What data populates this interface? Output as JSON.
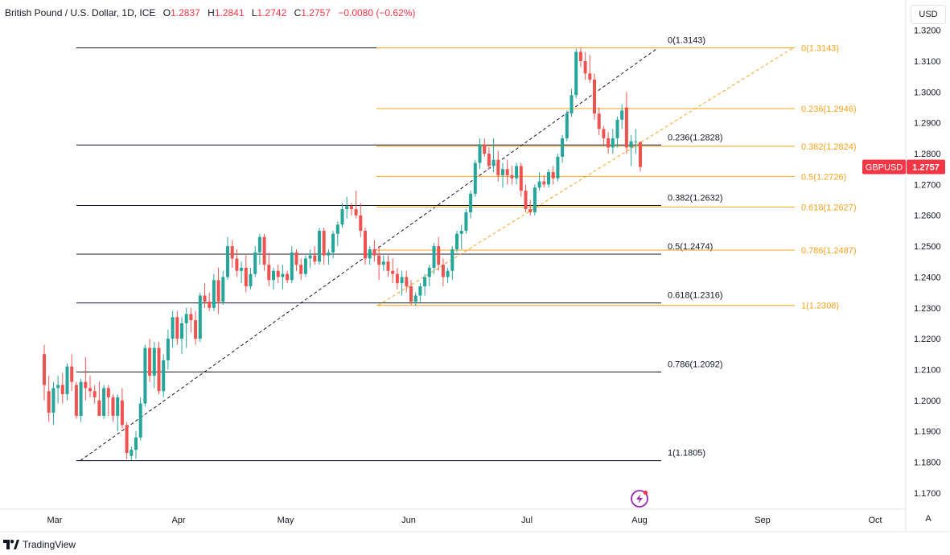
{
  "legend": {
    "title": "British Pound / U.S. Dollar, 1D, ICE",
    "open_label": "O",
    "open": "1.2837",
    "high_label": "H",
    "high": "1.2841",
    "low_label": "L",
    "low": "1.2742",
    "close_label": "C",
    "close": "1.2757",
    "change": "−0.0080 (−0.62%)"
  },
  "currency_button": "USD",
  "auto_scale_button": "A",
  "footer": {
    "brand": "TradingView",
    "logo_icon": "tradingview-logo-icon"
  },
  "colors": {
    "up": "#26a69a",
    "down": "#ef5350",
    "fib_black": "#131722",
    "fib_orange": "#f7a21b",
    "price_tag": "#f23645"
  },
  "price_tag": {
    "symbol": "GBPUSD",
    "price": "1.2757"
  },
  "chart_data": {
    "type": "candlestick",
    "symbol": "GBPUSD",
    "interval": "1D",
    "ylim": [
      1.165,
      1.322
    ],
    "y_ticks": [
      "1.3200",
      "1.3100",
      "1.3000",
      "1.2900",
      "1.2800",
      "1.2700",
      "1.2600",
      "1.2500",
      "1.2400",
      "1.2300",
      "1.2200",
      "1.2100",
      "1.2000",
      "1.1900",
      "1.1800",
      "1.1700"
    ],
    "x_ticks": [
      "Mar",
      "Apr",
      "May",
      "Jun",
      "Jul",
      "Aug",
      "Sep",
      "Oct"
    ],
    "candles": [
      {
        "o": 1.215,
        "h": 1.218,
        "l": 1.2,
        "c": 1.205
      },
      {
        "o": 1.203,
        "h": 1.208,
        "l": 1.193,
        "c": 1.196
      },
      {
        "o": 1.196,
        "h": 1.206,
        "l": 1.192,
        "c": 1.204
      },
      {
        "o": 1.204,
        "h": 1.208,
        "l": 1.199,
        "c": 1.205
      },
      {
        "o": 1.205,
        "h": 1.209,
        "l": 1.199,
        "c": 1.202
      },
      {
        "o": 1.202,
        "h": 1.212,
        "l": 1.2,
        "c": 1.211
      },
      {
        "o": 1.211,
        "h": 1.215,
        "l": 1.203,
        "c": 1.206
      },
      {
        "o": 1.205,
        "h": 1.206,
        "l": 1.194,
        "c": 1.195
      },
      {
        "o": 1.195,
        "h": 1.207,
        "l": 1.193,
        "c": 1.206
      },
      {
        "o": 1.206,
        "h": 1.214,
        "l": 1.2,
        "c": 1.204
      },
      {
        "o": 1.204,
        "h": 1.208,
        "l": 1.201,
        "c": 1.203
      },
      {
        "o": 1.203,
        "h": 1.205,
        "l": 1.199,
        "c": 1.201
      },
      {
        "o": 1.2,
        "h": 1.206,
        "l": 1.195,
        "c": 1.195
      },
      {
        "o": 1.195,
        "h": 1.205,
        "l": 1.194,
        "c": 1.204
      },
      {
        "o": 1.204,
        "h": 1.205,
        "l": 1.195,
        "c": 1.201
      },
      {
        "o": 1.201,
        "h": 1.202,
        "l": 1.193,
        "c": 1.195
      },
      {
        "o": 1.195,
        "h": 1.202,
        "l": 1.19,
        "c": 1.201
      },
      {
        "o": 1.2,
        "h": 1.204,
        "l": 1.191,
        "c": 1.192
      },
      {
        "o": 1.192,
        "h": 1.193,
        "l": 1.181,
        "c": 1.183
      },
      {
        "o": 1.182,
        "h": 1.185,
        "l": 1.1805,
        "c": 1.184
      },
      {
        "o": 1.184,
        "h": 1.19,
        "l": 1.181,
        "c": 1.188
      },
      {
        "o": 1.188,
        "h": 1.201,
        "l": 1.187,
        "c": 1.199
      },
      {
        "o": 1.199,
        "h": 1.218,
        "l": 1.198,
        "c": 1.217
      },
      {
        "o": 1.217,
        "h": 1.22,
        "l": 1.206,
        "c": 1.208
      },
      {
        "o": 1.208,
        "h": 1.219,
        "l": 1.204,
        "c": 1.217
      },
      {
        "o": 1.217,
        "h": 1.219,
        "l": 1.202,
        "c": 1.203
      },
      {
        "o": 1.203,
        "h": 1.215,
        "l": 1.201,
        "c": 1.213
      },
      {
        "o": 1.213,
        "h": 1.223,
        "l": 1.21,
        "c": 1.22
      },
      {
        "o": 1.22,
        "h": 1.229,
        "l": 1.217,
        "c": 1.227
      },
      {
        "o": 1.227,
        "h": 1.229,
        "l": 1.218,
        "c": 1.22
      },
      {
        "o": 1.22,
        "h": 1.227,
        "l": 1.215,
        "c": 1.225
      },
      {
        "o": 1.225,
        "h": 1.23,
        "l": 1.217,
        "c": 1.228
      },
      {
        "o": 1.228,
        "h": 1.23,
        "l": 1.222,
        "c": 1.226
      },
      {
        "o": 1.226,
        "h": 1.229,
        "l": 1.218,
        "c": 1.22
      },
      {
        "o": 1.22,
        "h": 1.235,
        "l": 1.219,
        "c": 1.234
      },
      {
        "o": 1.234,
        "h": 1.238,
        "l": 1.23,
        "c": 1.232
      },
      {
        "o": 1.232,
        "h": 1.235,
        "l": 1.229,
        "c": 1.23
      },
      {
        "o": 1.23,
        "h": 1.241,
        "l": 1.229,
        "c": 1.239
      },
      {
        "o": 1.239,
        "h": 1.243,
        "l": 1.228,
        "c": 1.232
      },
      {
        "o": 1.232,
        "h": 1.242,
        "l": 1.231,
        "c": 1.24
      },
      {
        "o": 1.24,
        "h": 1.253,
        "l": 1.239,
        "c": 1.25
      },
      {
        "o": 1.25,
        "h": 1.252,
        "l": 1.243,
        "c": 1.246
      },
      {
        "o": 1.246,
        "h": 1.249,
        "l": 1.24,
        "c": 1.242
      },
      {
        "o": 1.242,
        "h": 1.245,
        "l": 1.238,
        "c": 1.243
      },
      {
        "o": 1.243,
        "h": 1.247,
        "l": 1.235,
        "c": 1.237
      },
      {
        "o": 1.237,
        "h": 1.243,
        "l": 1.236,
        "c": 1.241
      },
      {
        "o": 1.241,
        "h": 1.25,
        "l": 1.24,
        "c": 1.248
      },
      {
        "o": 1.248,
        "h": 1.254,
        "l": 1.244,
        "c": 1.253
      },
      {
        "o": 1.253,
        "h": 1.254,
        "l": 1.242,
        "c": 1.244
      },
      {
        "o": 1.244,
        "h": 1.248,
        "l": 1.237,
        "c": 1.239
      },
      {
        "o": 1.239,
        "h": 1.243,
        "l": 1.236,
        "c": 1.242
      },
      {
        "o": 1.242,
        "h": 1.244,
        "l": 1.238,
        "c": 1.24
      },
      {
        "o": 1.24,
        "h": 1.244,
        "l": 1.236,
        "c": 1.241
      },
      {
        "o": 1.241,
        "h": 1.242,
        "l": 1.238,
        "c": 1.239
      },
      {
        "o": 1.239,
        "h": 1.25,
        "l": 1.238,
        "c": 1.248
      },
      {
        "o": 1.248,
        "h": 1.249,
        "l": 1.242,
        "c": 1.244
      },
      {
        "o": 1.244,
        "h": 1.246,
        "l": 1.239,
        "c": 1.241
      },
      {
        "o": 1.241,
        "h": 1.247,
        "l": 1.24,
        "c": 1.246
      },
      {
        "o": 1.246,
        "h": 1.249,
        "l": 1.243,
        "c": 1.247
      },
      {
        "o": 1.247,
        "h": 1.25,
        "l": 1.244,
        "c": 1.245
      },
      {
        "o": 1.245,
        "h": 1.256,
        "l": 1.244,
        "c": 1.255
      },
      {
        "o": 1.255,
        "h": 1.256,
        "l": 1.244,
        "c": 1.247
      },
      {
        "o": 1.247,
        "h": 1.249,
        "l": 1.244,
        "c": 1.248
      },
      {
        "o": 1.248,
        "h": 1.255,
        "l": 1.246,
        "c": 1.254
      },
      {
        "o": 1.254,
        "h": 1.258,
        "l": 1.25,
        "c": 1.257
      },
      {
        "o": 1.257,
        "h": 1.264,
        "l": 1.256,
        "c": 1.262
      },
      {
        "o": 1.262,
        "h": 1.266,
        "l": 1.259,
        "c": 1.263
      },
      {
        "o": 1.263,
        "h": 1.264,
        "l": 1.26,
        "c": 1.262
      },
      {
        "o": 1.262,
        "h": 1.268,
        "l": 1.259,
        "c": 1.26
      },
      {
        "o": 1.26,
        "h": 1.264,
        "l": 1.253,
        "c": 1.255
      },
      {
        "o": 1.255,
        "h": 1.256,
        "l": 1.244,
        "c": 1.246
      },
      {
        "o": 1.246,
        "h": 1.25,
        "l": 1.244,
        "c": 1.249
      },
      {
        "o": 1.249,
        "h": 1.252,
        "l": 1.245,
        "c": 1.247
      },
      {
        "o": 1.247,
        "h": 1.25,
        "l": 1.239,
        "c": 1.244
      },
      {
        "o": 1.244,
        "h": 1.247,
        "l": 1.242,
        "c": 1.245
      },
      {
        "o": 1.245,
        "h": 1.247,
        "l": 1.24,
        "c": 1.242
      },
      {
        "o": 1.242,
        "h": 1.246,
        "l": 1.238,
        "c": 1.241
      },
      {
        "o": 1.241,
        "h": 1.243,
        "l": 1.236,
        "c": 1.238
      },
      {
        "o": 1.238,
        "h": 1.242,
        "l": 1.234,
        "c": 1.24
      },
      {
        "o": 1.24,
        "h": 1.242,
        "l": 1.235,
        "c": 1.237
      },
      {
        "o": 1.237,
        "h": 1.239,
        "l": 1.231,
        "c": 1.232
      },
      {
        "o": 1.232,
        "h": 1.235,
        "l": 1.2308,
        "c": 1.234
      },
      {
        "o": 1.234,
        "h": 1.238,
        "l": 1.232,
        "c": 1.237
      },
      {
        "o": 1.237,
        "h": 1.241,
        "l": 1.234,
        "c": 1.24
      },
      {
        "o": 1.24,
        "h": 1.244,
        "l": 1.237,
        "c": 1.243
      },
      {
        "o": 1.243,
        "h": 1.251,
        "l": 1.241,
        "c": 1.25
      },
      {
        "o": 1.25,
        "h": 1.253,
        "l": 1.242,
        "c": 1.244
      },
      {
        "o": 1.244,
        "h": 1.246,
        "l": 1.237,
        "c": 1.24
      },
      {
        "o": 1.24,
        "h": 1.243,
        "l": 1.238,
        "c": 1.242
      },
      {
        "o": 1.242,
        "h": 1.25,
        "l": 1.239,
        "c": 1.249
      },
      {
        "o": 1.249,
        "h": 1.255,
        "l": 1.248,
        "c": 1.254
      },
      {
        "o": 1.254,
        "h": 1.257,
        "l": 1.249,
        "c": 1.255
      },
      {
        "o": 1.255,
        "h": 1.262,
        "l": 1.254,
        "c": 1.261
      },
      {
        "o": 1.261,
        "h": 1.268,
        "l": 1.259,
        "c": 1.267
      },
      {
        "o": 1.267,
        "h": 1.278,
        "l": 1.266,
        "c": 1.277
      },
      {
        "o": 1.277,
        "h": 1.285,
        "l": 1.275,
        "c": 1.283
      },
      {
        "o": 1.283,
        "h": 1.285,
        "l": 1.279,
        "c": 1.28
      },
      {
        "o": 1.28,
        "h": 1.282,
        "l": 1.275,
        "c": 1.276
      },
      {
        "o": 1.276,
        "h": 1.285,
        "l": 1.274,
        "c": 1.278
      },
      {
        "o": 1.278,
        "h": 1.281,
        "l": 1.271,
        "c": 1.273
      },
      {
        "o": 1.273,
        "h": 1.277,
        "l": 1.269,
        "c": 1.275
      },
      {
        "o": 1.275,
        "h": 1.278,
        "l": 1.27,
        "c": 1.273
      },
      {
        "o": 1.273,
        "h": 1.276,
        "l": 1.27,
        "c": 1.272
      },
      {
        "o": 1.272,
        "h": 1.277,
        "l": 1.27,
        "c": 1.276
      },
      {
        "o": 1.276,
        "h": 1.277,
        "l": 1.266,
        "c": 1.268
      },
      {
        "o": 1.268,
        "h": 1.27,
        "l": 1.261,
        "c": 1.262
      },
      {
        "o": 1.262,
        "h": 1.265,
        "l": 1.26,
        "c": 1.261
      },
      {
        "o": 1.261,
        "h": 1.27,
        "l": 1.26,
        "c": 1.269
      },
      {
        "o": 1.269,
        "h": 1.274,
        "l": 1.268,
        "c": 1.271
      },
      {
        "o": 1.271,
        "h": 1.273,
        "l": 1.269,
        "c": 1.27
      },
      {
        "o": 1.27,
        "h": 1.275,
        "l": 1.269,
        "c": 1.274
      },
      {
        "o": 1.274,
        "h": 1.276,
        "l": 1.27,
        "c": 1.272
      },
      {
        "o": 1.272,
        "h": 1.28,
        "l": 1.271,
        "c": 1.279
      },
      {
        "o": 1.279,
        "h": 1.286,
        "l": 1.277,
        "c": 1.285
      },
      {
        "o": 1.285,
        "h": 1.294,
        "l": 1.284,
        "c": 1.293
      },
      {
        "o": 1.293,
        "h": 1.301,
        "l": 1.292,
        "c": 1.299
      },
      {
        "o": 1.299,
        "h": 1.314,
        "l": 1.298,
        "c": 1.313
      },
      {
        "o": 1.313,
        "h": 1.3143,
        "l": 1.308,
        "c": 1.31
      },
      {
        "o": 1.31,
        "h": 1.313,
        "l": 1.304,
        "c": 1.306
      },
      {
        "o": 1.306,
        "h": 1.312,
        "l": 1.303,
        "c": 1.304
      },
      {
        "o": 1.304,
        "h": 1.306,
        "l": 1.291,
        "c": 1.293
      },
      {
        "o": 1.293,
        "h": 1.295,
        "l": 1.286,
        "c": 1.288
      },
      {
        "o": 1.288,
        "h": 1.289,
        "l": 1.283,
        "c": 1.285
      },
      {
        "o": 1.285,
        "h": 1.287,
        "l": 1.28,
        "c": 1.282
      },
      {
        "o": 1.282,
        "h": 1.288,
        "l": 1.28,
        "c": 1.285
      },
      {
        "o": 1.285,
        "h": 1.292,
        "l": 1.282,
        "c": 1.291
      },
      {
        "o": 1.291,
        "h": 1.296,
        "l": 1.288,
        "c": 1.294
      },
      {
        "o": 1.295,
        "h": 1.3,
        "l": 1.28,
        "c": 1.282
      },
      {
        "o": 1.282,
        "h": 1.286,
        "l": 1.276,
        "c": 1.284
      },
      {
        "o": 1.284,
        "h": 1.288,
        "l": 1.28,
        "c": 1.284
      },
      {
        "o": 1.2837,
        "h": 1.2841,
        "l": 1.2742,
        "c": 1.2757
      }
    ],
    "fib_black": {
      "levels": [
        {
          "label": "0(1.3143)",
          "value": 1.3143
        },
        {
          "label": "0.236(1.2828)",
          "value": 1.2828
        },
        {
          "label": "0.382(1.2632)",
          "value": 1.2632
        },
        {
          "label": "0.5(1.2474)",
          "value": 1.2474
        },
        {
          "label": "0.618(1.2316)",
          "value": 1.2316
        },
        {
          "label": "0.786(1.2092)",
          "value": 1.2092
        },
        {
          "label": "1(1.1805)",
          "value": 1.1805
        }
      ],
      "trend_from": 1.1805,
      "trend_to": 1.3143
    },
    "fib_orange": {
      "levels": [
        {
          "label": "0(1.3143)",
          "value": 1.3143
        },
        {
          "label": "0.236(1.2946)",
          "value": 1.2946
        },
        {
          "label": "0.382(1.2824)",
          "value": 1.2824
        },
        {
          "label": "0.5(1.2726)",
          "value": 1.2726
        },
        {
          "label": "0.618(1.2627)",
          "value": 1.2627
        },
        {
          "label": "0.786(1.2487)",
          "value": 1.2487
        },
        {
          "label": "1(1.2308)",
          "value": 1.2308
        }
      ],
      "trend_from": 1.2308,
      "trend_to": 1.3143
    }
  }
}
